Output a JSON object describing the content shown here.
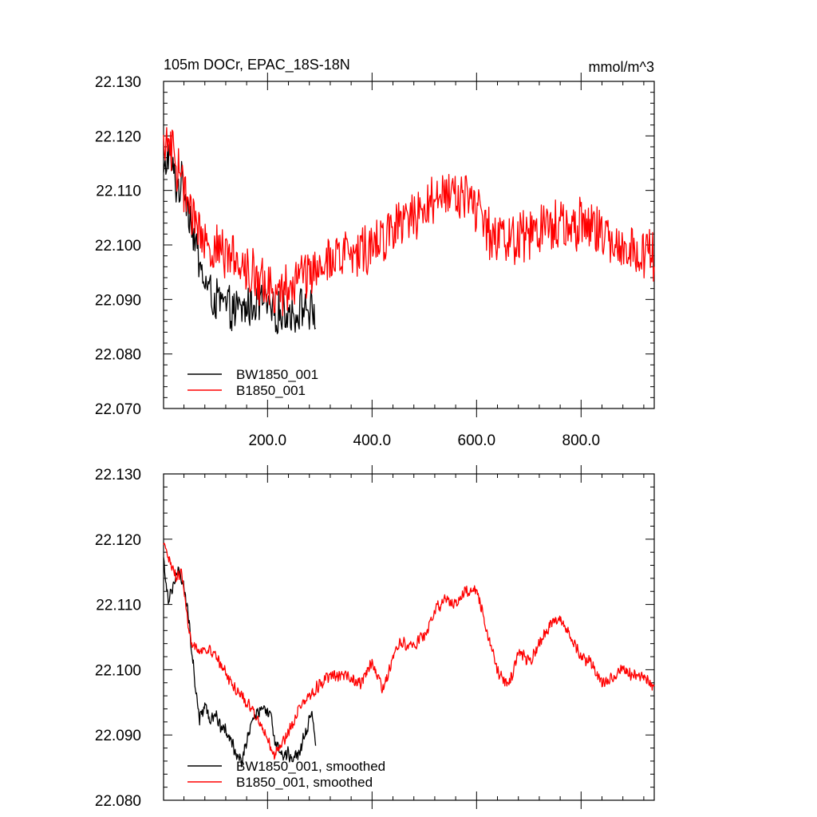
{
  "chart_data": [
    {
      "type": "line",
      "title": "105m DOCr, EPAC_18S-18N",
      "units": "mmol/m^3",
      "xlim": [
        1,
        940
      ],
      "ylim": [
        22.07,
        22.13
      ],
      "xticks": [
        200,
        400,
        600,
        800
      ],
      "xtick_labels": [
        "200.0",
        "400.0",
        "600.0",
        "800.0"
      ],
      "yticks": [
        22.07,
        22.08,
        22.09,
        22.1,
        22.11,
        22.12,
        22.13
      ],
      "ytick_labels": [
        "22.070",
        "22.080",
        "22.090",
        "22.100",
        "22.110",
        "22.120",
        "22.130"
      ],
      "legend_position": "bottom-left",
      "series": [
        {
          "name": "BW1850_001",
          "color": "#000000",
          "x_end": 292,
          "trend": [
            [
              1,
              22.112
            ],
            [
              10,
              22.117
            ],
            [
              25,
              22.111
            ],
            [
              40,
              22.111
            ],
            [
              55,
              22.104
            ],
            [
              70,
              22.096
            ],
            [
              85,
              22.092
            ],
            [
              100,
              22.09
            ],
            [
              115,
              22.089
            ],
            [
              130,
              22.088
            ],
            [
              150,
              22.088
            ],
            [
              170,
              22.089
            ],
            [
              190,
              22.09
            ],
            [
              210,
              22.087
            ],
            [
              230,
              22.088
            ],
            [
              250,
              22.087
            ],
            [
              270,
              22.089
            ],
            [
              292,
              22.087
            ]
          ],
          "noise": 0.0045
        },
        {
          "name": "B1850_001",
          "color": "#ff0000",
          "x_end": 940,
          "trend": [
            [
              1,
              22.118
            ],
            [
              15,
              22.118
            ],
            [
              30,
              22.113
            ],
            [
              50,
              22.107
            ],
            [
              70,
              22.102
            ],
            [
              100,
              22.099
            ],
            [
              150,
              22.097
            ],
            [
              200,
              22.092
            ],
            [
              230,
              22.091
            ],
            [
              260,
              22.094
            ],
            [
              300,
              22.097
            ],
            [
              350,
              22.098
            ],
            [
              400,
              22.1
            ],
            [
              450,
              22.104
            ],
            [
              500,
              22.107
            ],
            [
              540,
              22.11
            ],
            [
              580,
              22.109
            ],
            [
              600,
              22.107
            ],
            [
              630,
              22.101
            ],
            [
              660,
              22.101
            ],
            [
              700,
              22.102
            ],
            [
              750,
              22.104
            ],
            [
              800,
              22.104
            ],
            [
              850,
              22.101
            ],
            [
              900,
              22.099
            ],
            [
              940,
              22.098
            ]
          ],
          "noise": 0.0055
        }
      ]
    },
    {
      "type": "line",
      "title": "",
      "units": "",
      "xlim": [
        1,
        940
      ],
      "ylim": [
        22.08,
        22.13
      ],
      "yticks": [
        22.08,
        22.09,
        22.1,
        22.11,
        22.12,
        22.13
      ],
      "ytick_labels": [
        "22.080",
        "22.090",
        "22.100",
        "22.110",
        "22.120",
        "22.130"
      ],
      "legend_position": "bottom-left",
      "series": [
        {
          "name": "BW1850_001, smoothed",
          "color": "#000000",
          "x_end": 292,
          "trend": [
            [
              1,
              22.117
            ],
            [
              10,
              22.111
            ],
            [
              20,
              22.113
            ],
            [
              30,
              22.115
            ],
            [
              40,
              22.113
            ],
            [
              50,
              22.107
            ],
            [
              60,
              22.099
            ],
            [
              70,
              22.092
            ],
            [
              80,
              22.095
            ],
            [
              90,
              22.092
            ],
            [
              100,
              22.093
            ],
            [
              115,
              22.091
            ],
            [
              130,
              22.089
            ],
            [
              150,
              22.086
            ],
            [
              170,
              22.092
            ],
            [
              190,
              22.094
            ],
            [
              205,
              22.093
            ],
            [
              215,
              22.089
            ],
            [
              230,
              22.087
            ],
            [
              245,
              22.087
            ],
            [
              260,
              22.087
            ],
            [
              270,
              22.09
            ],
            [
              285,
              22.093
            ],
            [
              292,
              22.088
            ]
          ],
          "noise": 0.0013
        },
        {
          "name": "B1850_001, smoothed",
          "color": "#ff0000",
          "x_end": 940,
          "trend": [
            [
              1,
              22.119
            ],
            [
              10,
              22.117
            ],
            [
              25,
              22.114
            ],
            [
              35,
              22.115
            ],
            [
              50,
              22.105
            ],
            [
              70,
              22.103
            ],
            [
              90,
              22.103
            ],
            [
              110,
              22.101
            ],
            [
              130,
              22.098
            ],
            [
              150,
              22.096
            ],
            [
              180,
              22.093
            ],
            [
              200,
              22.089
            ],
            [
              215,
              22.087
            ],
            [
              230,
              22.089
            ],
            [
              260,
              22.094
            ],
            [
              290,
              22.097
            ],
            [
              320,
              22.099
            ],
            [
              350,
              22.099
            ],
            [
              380,
              22.098
            ],
            [
              400,
              22.101
            ],
            [
              420,
              22.097
            ],
            [
              450,
              22.104
            ],
            [
              480,
              22.104
            ],
            [
              500,
              22.105
            ],
            [
              520,
              22.109
            ],
            [
              540,
              22.111
            ],
            [
              560,
              22.11
            ],
            [
              580,
              22.112
            ],
            [
              600,
              22.112
            ],
            [
              620,
              22.106
            ],
            [
              640,
              22.1
            ],
            [
              660,
              22.097
            ],
            [
              680,
              22.103
            ],
            [
              700,
              22.101
            ],
            [
              720,
              22.104
            ],
            [
              740,
              22.107
            ],
            [
              760,
              22.108
            ],
            [
              780,
              22.105
            ],
            [
              800,
              22.102
            ],
            [
              820,
              22.101
            ],
            [
              840,
              22.098
            ],
            [
              860,
              22.099
            ],
            [
              880,
              22.1
            ],
            [
              900,
              22.099
            ],
            [
              920,
              22.099
            ],
            [
              940,
              22.097
            ]
          ],
          "noise": 0.0011
        }
      ]
    }
  ]
}
